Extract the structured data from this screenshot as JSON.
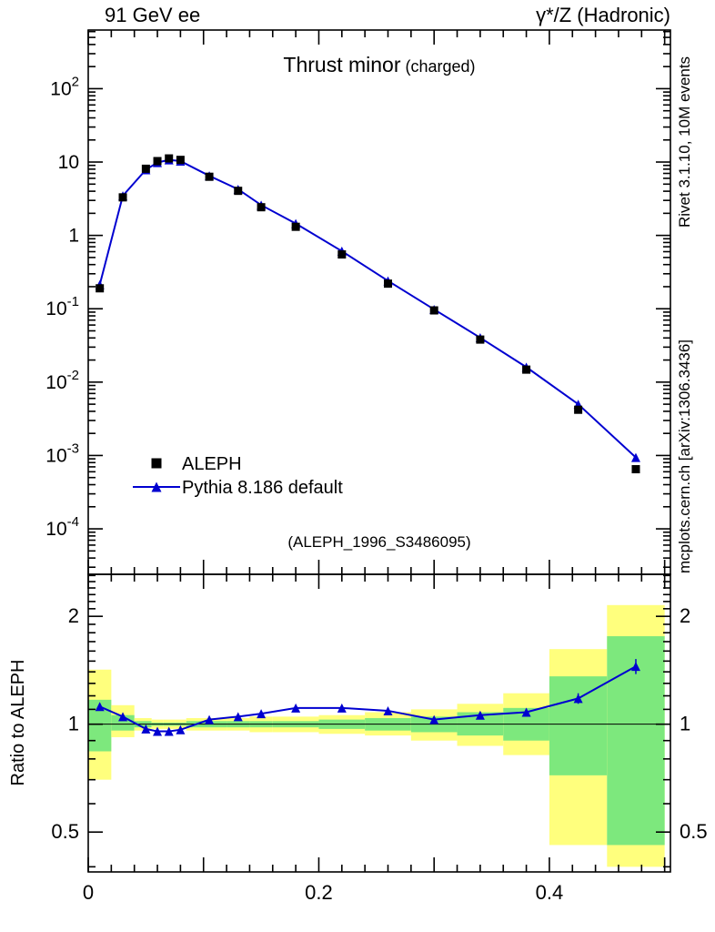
{
  "header": {
    "left": "91 GeV ee",
    "right": "γ*/Z (Hadronic)"
  },
  "title": {
    "main": "Thrust minor",
    "suffix": "(charged)"
  },
  "watermark": "(ALEPH_1996_S3486095)",
  "ratio_axis_label": "Ratio to ALEPH",
  "side_notes": {
    "top_right": "Rivet 3.1.10,  10M events",
    "bottom_right": "mcplots.cern.ch [arXiv:1306.3436]"
  },
  "chart_data": {
    "type": "line",
    "title": "Thrust minor (charged)",
    "xlabel": "",
    "ylabel": "",
    "yscale": "log",
    "x": [
      0.01,
      0.03,
      0.05,
      0.06,
      0.07,
      0.08,
      0.105,
      0.13,
      0.15,
      0.18,
      0.22,
      0.26,
      0.3,
      0.34,
      0.38,
      0.425,
      0.475
    ],
    "bin_edges": [
      0,
      0.02,
      0.04,
      0.055,
      0.065,
      0.075,
      0.085,
      0.12,
      0.14,
      0.16,
      0.2,
      0.24,
      0.28,
      0.32,
      0.36,
      0.4,
      0.45,
      0.5
    ],
    "series": [
      {
        "name": "ALEPH",
        "marker": "square",
        "color": "#000000",
        "values": [
          0.19,
          3.3,
          8.1,
          10.3,
          11.2,
          10.7,
          6.3,
          4.05,
          2.42,
          1.31,
          0.55,
          0.22,
          0.095,
          0.038,
          0.0148,
          0.0042,
          0.00065
        ],
        "yerr": [
          0.004,
          0.04,
          0.08,
          0.1,
          0.1,
          0.1,
          0.06,
          0.04,
          0.025,
          0.015,
          0.007,
          0.003,
          0.0015,
          0.0007,
          0.0004,
          0.00015,
          6e-05
        ]
      },
      {
        "name": "Pythia 8.186 default",
        "marker": "triangle",
        "color": "#0000d0",
        "values": [
          0.213,
          3.47,
          7.86,
          9.84,
          10.7,
          10.3,
          6.49,
          4.25,
          2.59,
          1.45,
          0.61,
          0.24,
          0.098,
          0.0403,
          0.016,
          0.005,
          0.00094
        ]
      }
    ],
    "ratio": {
      "label": "Ratio to ALEPH",
      "values": [
        1.12,
        1.05,
        0.97,
        0.955,
        0.955,
        0.965,
        1.03,
        1.05,
        1.07,
        1.11,
        1.11,
        1.09,
        1.03,
        1.06,
        1.08,
        1.18,
        1.45
      ],
      "err": [
        0.025,
        0.015,
        0.012,
        0.011,
        0.011,
        0.011,
        0.011,
        0.011,
        0.012,
        0.013,
        0.014,
        0.015,
        0.017,
        0.02,
        0.025,
        0.04,
        0.07
      ],
      "band_outer_lo": [
        0.7,
        0.92,
        0.96,
        0.97,
        0.97,
        0.97,
        0.96,
        0.96,
        0.95,
        0.95,
        0.94,
        0.93,
        0.9,
        0.87,
        0.82,
        0.46,
        0.4
      ],
      "band_outer_hi": [
        1.42,
        1.13,
        1.04,
        1.03,
        1.03,
        1.03,
        1.04,
        1.04,
        1.05,
        1.05,
        1.06,
        1.08,
        1.1,
        1.14,
        1.22,
        1.62,
        2.15
      ],
      "band_inner_lo": [
        0.84,
        0.96,
        0.98,
        0.99,
        0.99,
        0.99,
        0.98,
        0.98,
        0.98,
        0.98,
        0.97,
        0.96,
        0.95,
        0.93,
        0.9,
        0.72,
        0.46
      ],
      "band_inner_hi": [
        1.17,
        1.06,
        1.02,
        1.01,
        1.01,
        1.01,
        1.02,
        1.02,
        1.02,
        1.02,
        1.03,
        1.04,
        1.05,
        1.08,
        1.11,
        1.36,
        1.76
      ]
    },
    "axes": {
      "xlim": [
        0,
        0.505
      ],
      "ylim": [
        2.4e-05,
        630
      ],
      "x_ticks_labeled": [
        0,
        0.2,
        0.4
      ],
      "ratio_ylim": [
        0.387,
        2.62
      ],
      "ratio_ticks": [
        0.5,
        1,
        2
      ],
      "grid": false,
      "legend_position": "lower-left"
    },
    "colors": {
      "mc_line": "#0000d0",
      "data_marker": "#000000",
      "band_outer": "#ffff7d",
      "band_inner": "#7de87d"
    }
  }
}
